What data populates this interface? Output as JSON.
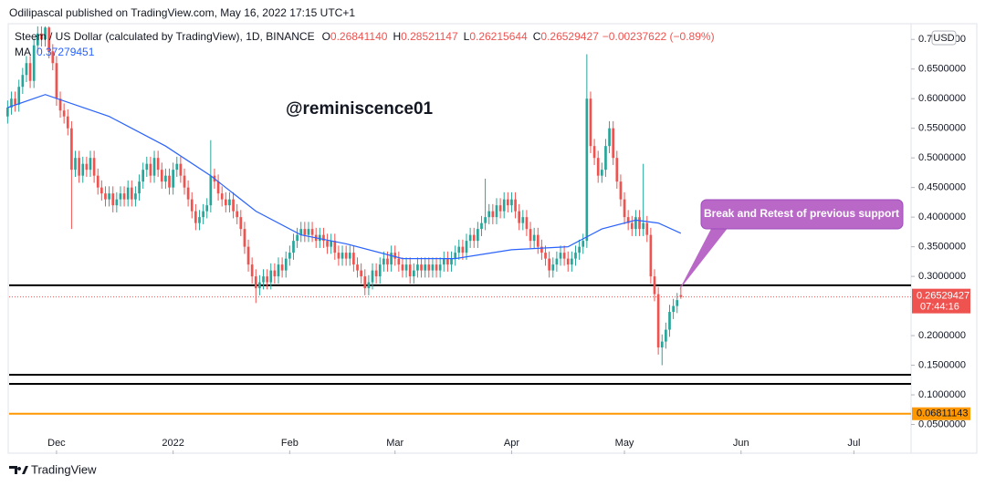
{
  "header": "Odilipascal published on TradingView.com, May 16, 2022 17:15 UTC+1",
  "footer": "TradingView",
  "chart_data": {
    "type": "candlestick",
    "symbol": "Steem / US Dollar (calculated by TradingView), 1D, BINANCE",
    "ohlc": [
      {
        "key": "O",
        "value": "0.26841140"
      },
      {
        "key": "H",
        "value": "0.28521147"
      },
      {
        "key": "L",
        "value": "0.26215644"
      },
      {
        "key": "C",
        "value": "0.26529427"
      }
    ],
    "change": "−0.00237622 (−0.89%)",
    "currency": "USD",
    "annotation": "@reminiscence01",
    "callout": "Break and Retest of previous support",
    "time_label": "07:44:16",
    "up_color": "#26a69a",
    "down_color": "#ef5350",
    "xlim": [
      -12.6,
      227.2
    ],
    "xticks": [
      {
        "value": 0,
        "label": "Dec"
      },
      {
        "value": 31,
        "label": "2022"
      },
      {
        "value": 62,
        "label": "Feb"
      },
      {
        "value": 90,
        "label": "Mar"
      },
      {
        "value": 121,
        "label": "Apr"
      },
      {
        "value": 151,
        "label": "May"
      },
      {
        "value": 182,
        "label": "Jun"
      },
      {
        "value": 212,
        "label": "Jul"
      }
    ],
    "ylim": [
      0,
      0.725
    ],
    "yticks": [
      {
        "value": 0.05,
        "label": "0.0500000"
      },
      {
        "value": 0.1,
        "label": "0.1000000"
      },
      {
        "value": 0.15,
        "label": "0.1500000"
      },
      {
        "value": 0.2,
        "label": "0.2000000"
      },
      {
        "value": 0.3,
        "label": "0.3000000"
      },
      {
        "value": 0.35,
        "label": "0.3500000"
      },
      {
        "value": 0.4,
        "label": "0.4000000"
      },
      {
        "value": 0.45,
        "label": "0.4500000"
      },
      {
        "value": 0.5,
        "label": "0.5000000"
      },
      {
        "value": 0.55,
        "label": "0.5500000"
      },
      {
        "value": 0.6,
        "label": "0.6000000"
      },
      {
        "value": 0.65,
        "label": "0.6500000"
      },
      {
        "value": 0.7,
        "label": "0.7000000"
      }
    ],
    "hlines": [
      {
        "value": 0.285,
        "color": "#000000"
      },
      {
        "value": 0.134,
        "color": "#000000"
      },
      {
        "value": 0.1185,
        "color": "#000000"
      },
      {
        "value": 0.06811143,
        "color": "#ff9800"
      }
    ],
    "x": [
      -13,
      -12,
      -11,
      -10,
      -9,
      -8,
      -7,
      -6,
      -5,
      -4,
      -3,
      -2,
      -1,
      0,
      1,
      2,
      3,
      4,
      5,
      6,
      7,
      8,
      9,
      10,
      11,
      12,
      13,
      14,
      15,
      16,
      17,
      18,
      19,
      20,
      21,
      22,
      23,
      24,
      25,
      26,
      27,
      28,
      29,
      30,
      31,
      32,
      33,
      34,
      35,
      36,
      37,
      38,
      39,
      40,
      41,
      42,
      43,
      44,
      45,
      46,
      47,
      48,
      49,
      50,
      51,
      52,
      53,
      54,
      55,
      56,
      57,
      58,
      59,
      60,
      61,
      62,
      63,
      64,
      65,
      66,
      67,
      68,
      69,
      70,
      71,
      72,
      73,
      74,
      75,
      76,
      77,
      78,
      79,
      80,
      81,
      82,
      83,
      84,
      85,
      86,
      87,
      88,
      89,
      90,
      91,
      92,
      93,
      94,
      95,
      96,
      97,
      98,
      99,
      100,
      101,
      102,
      103,
      104,
      105,
      106,
      107,
      108,
      109,
      110,
      111,
      112,
      113,
      114,
      115,
      116,
      117,
      118,
      119,
      120,
      121,
      122,
      123,
      124,
      125,
      126,
      127,
      128,
      129,
      130,
      131,
      132,
      133,
      134,
      135,
      136,
      137,
      138,
      139,
      140,
      141,
      142,
      143,
      144,
      145,
      146,
      147,
      148,
      149,
      150,
      151,
      152,
      153,
      154,
      155,
      156,
      157,
      158,
      159,
      160,
      161,
      162,
      163,
      164,
      165,
      166
    ],
    "candles": [
      [
        0.57,
        0.597,
        0.558,
        0.585
      ],
      [
        0.585,
        0.612,
        0.573,
        0.6
      ],
      [
        0.6,
        0.612,
        0.578,
        0.59
      ],
      [
        0.59,
        0.632,
        0.578,
        0.62
      ],
      [
        0.62,
        0.652,
        0.608,
        0.64
      ],
      [
        0.64,
        0.672,
        0.628,
        0.66
      ],
      [
        0.66,
        0.672,
        0.618,
        0.63
      ],
      [
        0.63,
        0.702,
        0.618,
        0.69
      ],
      [
        0.69,
        0.722,
        0.678,
        0.71
      ],
      [
        0.71,
        0.722,
        0.688,
        0.7
      ],
      [
        0.7,
        0.722,
        0.688,
        0.72
      ],
      [
        0.72,
        0.722,
        0.668,
        0.68
      ],
      [
        0.68,
        0.692,
        0.648,
        0.66
      ],
      [
        0.66,
        0.672,
        0.588,
        0.6
      ],
      [
        0.6,
        0.612,
        0.568,
        0.58
      ],
      [
        0.58,
        0.592,
        0.558,
        0.57
      ],
      [
        0.57,
        0.582,
        0.538,
        0.55
      ],
      [
        0.55,
        0.562,
        0.38,
        0.48
      ],
      [
        0.48,
        0.512,
        0.468,
        0.5
      ],
      [
        0.5,
        0.512,
        0.458,
        0.47
      ],
      [
        0.47,
        0.502,
        0.458,
        0.49
      ],
      [
        0.49,
        0.502,
        0.468,
        0.48
      ],
      [
        0.48,
        0.512,
        0.468,
        0.5
      ],
      [
        0.5,
        0.512,
        0.458,
        0.47
      ],
      [
        0.47,
        0.482,
        0.438,
        0.45
      ],
      [
        0.45,
        0.462,
        0.428,
        0.44
      ],
      [
        0.44,
        0.452,
        0.418,
        0.43
      ],
      [
        0.43,
        0.452,
        0.418,
        0.44
      ],
      [
        0.44,
        0.452,
        0.408,
        0.42
      ],
      [
        0.42,
        0.442,
        0.408,
        0.43
      ],
      [
        0.43,
        0.452,
        0.418,
        0.44
      ],
      [
        0.44,
        0.452,
        0.418,
        0.43
      ],
      [
        0.43,
        0.462,
        0.418,
        0.45
      ],
      [
        0.45,
        0.462,
        0.418,
        0.43
      ],
      [
        0.43,
        0.452,
        0.418,
        0.44
      ],
      [
        0.44,
        0.472,
        0.428,
        0.46
      ],
      [
        0.46,
        0.492,
        0.448,
        0.48
      ],
      [
        0.48,
        0.502,
        0.468,
        0.49
      ],
      [
        0.49,
        0.502,
        0.458,
        0.47
      ],
      [
        0.47,
        0.512,
        0.458,
        0.5
      ],
      [
        0.5,
        0.512,
        0.468,
        0.48
      ],
      [
        0.48,
        0.492,
        0.448,
        0.46
      ],
      [
        0.46,
        0.482,
        0.448,
        0.47
      ],
      [
        0.47,
        0.482,
        0.438,
        0.45
      ],
      [
        0.45,
        0.492,
        0.438,
        0.48
      ],
      [
        0.48,
        0.502,
        0.468,
        0.49
      ],
      [
        0.49,
        0.502,
        0.458,
        0.47
      ],
      [
        0.47,
        0.482,
        0.438,
        0.45
      ],
      [
        0.45,
        0.462,
        0.418,
        0.43
      ],
      [
        0.43,
        0.442,
        0.398,
        0.41
      ],
      [
        0.41,
        0.422,
        0.378,
        0.39
      ],
      [
        0.39,
        0.412,
        0.378,
        0.4
      ],
      [
        0.4,
        0.422,
        0.388,
        0.41
      ],
      [
        0.41,
        0.432,
        0.398,
        0.42
      ],
      [
        0.42,
        0.53,
        0.408,
        0.47
      ],
      [
        0.47,
        0.482,
        0.448,
        0.46
      ],
      [
        0.46,
        0.472,
        0.428,
        0.44
      ],
      [
        0.44,
        0.452,
        0.418,
        0.43
      ],
      [
        0.43,
        0.442,
        0.408,
        0.42
      ],
      [
        0.42,
        0.442,
        0.408,
        0.43
      ],
      [
        0.43,
        0.442,
        0.398,
        0.41
      ],
      [
        0.41,
        0.422,
        0.388,
        0.4
      ],
      [
        0.4,
        0.412,
        0.368,
        0.38
      ],
      [
        0.38,
        0.392,
        0.338,
        0.35
      ],
      [
        0.35,
        0.362,
        0.308,
        0.32
      ],
      [
        0.32,
        0.332,
        0.288,
        0.3
      ],
      [
        0.3,
        0.312,
        0.255,
        0.28
      ],
      [
        0.28,
        0.302,
        0.268,
        0.29
      ],
      [
        0.29,
        0.312,
        0.278,
        0.3
      ],
      [
        0.3,
        0.312,
        0.278,
        0.29
      ],
      [
        0.29,
        0.322,
        0.278,
        0.31
      ],
      [
        0.31,
        0.322,
        0.288,
        0.3
      ],
      [
        0.3,
        0.332,
        0.288,
        0.32
      ],
      [
        0.32,
        0.332,
        0.298,
        0.31
      ],
      [
        0.31,
        0.342,
        0.298,
        0.33
      ],
      [
        0.33,
        0.352,
        0.318,
        0.34
      ],
      [
        0.34,
        0.372,
        0.328,
        0.36
      ],
      [
        0.36,
        0.382,
        0.348,
        0.37
      ],
      [
        0.37,
        0.392,
        0.358,
        0.38
      ],
      [
        0.38,
        0.392,
        0.358,
        0.37
      ],
      [
        0.37,
        0.392,
        0.358,
        0.38
      ],
      [
        0.38,
        0.392,
        0.358,
        0.37
      ],
      [
        0.37,
        0.382,
        0.348,
        0.36
      ],
      [
        0.36,
        0.382,
        0.348,
        0.37
      ],
      [
        0.37,
        0.382,
        0.348,
        0.36
      ],
      [
        0.36,
        0.372,
        0.338,
        0.35
      ],
      [
        0.35,
        0.372,
        0.338,
        0.36
      ],
      [
        0.36,
        0.372,
        0.328,
        0.34
      ],
      [
        0.34,
        0.352,
        0.318,
        0.33
      ],
      [
        0.33,
        0.352,
        0.318,
        0.34
      ],
      [
        0.34,
        0.352,
        0.318,
        0.33
      ],
      [
        0.33,
        0.352,
        0.318,
        0.34
      ],
      [
        0.34,
        0.352,
        0.308,
        0.32
      ],
      [
        0.32,
        0.332,
        0.298,
        0.31
      ],
      [
        0.31,
        0.322,
        0.288,
        0.3
      ],
      [
        0.3,
        0.312,
        0.268,
        0.28
      ],
      [
        0.28,
        0.302,
        0.268,
        0.29
      ],
      [
        0.29,
        0.322,
        0.278,
        0.31
      ],
      [
        0.31,
        0.322,
        0.288,
        0.3
      ],
      [
        0.3,
        0.332,
        0.288,
        0.32
      ],
      [
        0.32,
        0.342,
        0.308,
        0.33
      ],
      [
        0.33,
        0.342,
        0.308,
        0.32
      ],
      [
        0.32,
        0.352,
        0.308,
        0.34
      ],
      [
        0.34,
        0.352,
        0.318,
        0.33
      ],
      [
        0.33,
        0.342,
        0.308,
        0.32
      ],
      [
        0.32,
        0.332,
        0.298,
        0.31
      ],
      [
        0.31,
        0.332,
        0.298,
        0.32
      ],
      [
        0.32,
        0.332,
        0.288,
        0.3
      ],
      [
        0.3,
        0.322,
        0.288,
        0.31
      ],
      [
        0.31,
        0.332,
        0.298,
        0.32
      ],
      [
        0.32,
        0.332,
        0.298,
        0.31
      ],
      [
        0.31,
        0.332,
        0.298,
        0.32
      ],
      [
        0.32,
        0.332,
        0.298,
        0.31
      ],
      [
        0.31,
        0.332,
        0.298,
        0.32
      ],
      [
        0.32,
        0.332,
        0.298,
        0.31
      ],
      [
        0.31,
        0.332,
        0.298,
        0.32
      ],
      [
        0.32,
        0.342,
        0.308,
        0.33
      ],
      [
        0.33,
        0.342,
        0.308,
        0.32
      ],
      [
        0.32,
        0.342,
        0.308,
        0.33
      ],
      [
        0.33,
        0.352,
        0.318,
        0.34
      ],
      [
        0.34,
        0.362,
        0.328,
        0.35
      ],
      [
        0.35,
        0.362,
        0.328,
        0.34
      ],
      [
        0.34,
        0.372,
        0.328,
        0.36
      ],
      [
        0.36,
        0.382,
        0.348,
        0.37
      ],
      [
        0.37,
        0.382,
        0.348,
        0.36
      ],
      [
        0.36,
        0.392,
        0.348,
        0.38
      ],
      [
        0.38,
        0.402,
        0.368,
        0.39
      ],
      [
        0.39,
        0.465,
        0.378,
        0.4
      ],
      [
        0.4,
        0.422,
        0.388,
        0.41
      ],
      [
        0.41,
        0.422,
        0.388,
        0.4
      ],
      [
        0.4,
        0.432,
        0.388,
        0.42
      ],
      [
        0.42,
        0.432,
        0.398,
        0.41
      ],
      [
        0.41,
        0.442,
        0.398,
        0.43
      ],
      [
        0.43,
        0.442,
        0.408,
        0.42
      ],
      [
        0.42,
        0.442,
        0.408,
        0.43
      ],
      [
        0.43,
        0.442,
        0.398,
        0.41
      ],
      [
        0.41,
        0.422,
        0.378,
        0.39
      ],
      [
        0.39,
        0.412,
        0.378,
        0.4
      ],
      [
        0.4,
        0.412,
        0.368,
        0.38
      ],
      [
        0.38,
        0.392,
        0.348,
        0.36
      ],
      [
        0.36,
        0.382,
        0.348,
        0.37
      ],
      [
        0.37,
        0.382,
        0.338,
        0.35
      ],
      [
        0.35,
        0.362,
        0.328,
        0.34
      ],
      [
        0.34,
        0.352,
        0.318,
        0.33
      ],
      [
        0.33,
        0.342,
        0.298,
        0.31
      ],
      [
        0.31,
        0.332,
        0.298,
        0.32
      ],
      [
        0.32,
        0.342,
        0.308,
        0.33
      ],
      [
        0.33,
        0.352,
        0.318,
        0.34
      ],
      [
        0.34,
        0.352,
        0.318,
        0.33
      ],
      [
        0.33,
        0.342,
        0.308,
        0.32
      ],
      [
        0.32,
        0.342,
        0.308,
        0.33
      ],
      [
        0.33,
        0.352,
        0.318,
        0.34
      ],
      [
        0.34,
        0.362,
        0.328,
        0.35
      ],
      [
        0.35,
        0.372,
        0.338,
        0.36
      ],
      [
        0.36,
        0.675,
        0.348,
        0.6
      ],
      [
        0.6,
        0.612,
        0.508,
        0.52
      ],
      [
        0.52,
        0.532,
        0.488,
        0.5
      ],
      [
        0.5,
        0.512,
        0.458,
        0.47
      ],
      [
        0.47,
        0.492,
        0.458,
        0.48
      ],
      [
        0.48,
        0.532,
        0.468,
        0.52
      ],
      [
        0.52,
        0.562,
        0.508,
        0.55
      ],
      [
        0.55,
        0.562,
        0.488,
        0.5
      ],
      [
        0.5,
        0.512,
        0.448,
        0.46
      ],
      [
        0.46,
        0.472,
        0.418,
        0.43
      ],
      [
        0.43,
        0.442,
        0.388,
        0.4
      ],
      [
        0.4,
        0.412,
        0.378,
        0.39
      ],
      [
        0.39,
        0.402,
        0.368,
        0.38
      ],
      [
        0.38,
        0.412,
        0.368,
        0.4
      ],
      [
        0.4,
        0.412,
        0.368,
        0.38
      ],
      [
        0.38,
        0.49,
        0.368,
        0.39
      ],
      [
        0.39,
        0.402,
        0.358,
        0.37
      ],
      [
        0.37,
        0.382,
        0.288,
        0.3
      ],
      [
        0.3,
        0.312,
        0.258,
        0.27
      ],
      [
        0.27,
        0.282,
        0.168,
        0.18
      ],
      [
        0.18,
        0.202,
        0.15,
        0.19
      ],
      [
        0.19,
        0.222,
        0.178,
        0.21
      ],
      [
        0.21,
        0.252,
        0.198,
        0.24
      ],
      [
        0.24,
        0.262,
        0.228,
        0.25
      ],
      [
        0.25,
        0.272,
        0.238,
        0.26
      ],
      [
        0.2684114,
        0.28521147,
        0.26215644,
        0.26529427
      ]
    ],
    "ma": {
      "name": "MA",
      "color": "#2962ff",
      "x": [
        -13,
        -3,
        14,
        29,
        41,
        53,
        65,
        77,
        92,
        106,
        121,
        136,
        145,
        154,
        160,
        166
      ],
      "values": [
        0.585,
        0.607,
        0.57,
        0.52,
        0.47,
        0.41,
        0.37,
        0.355,
        0.33,
        0.33,
        0.345,
        0.35,
        0.38,
        0.395,
        0.39,
        0.37279451
      ]
    }
  }
}
